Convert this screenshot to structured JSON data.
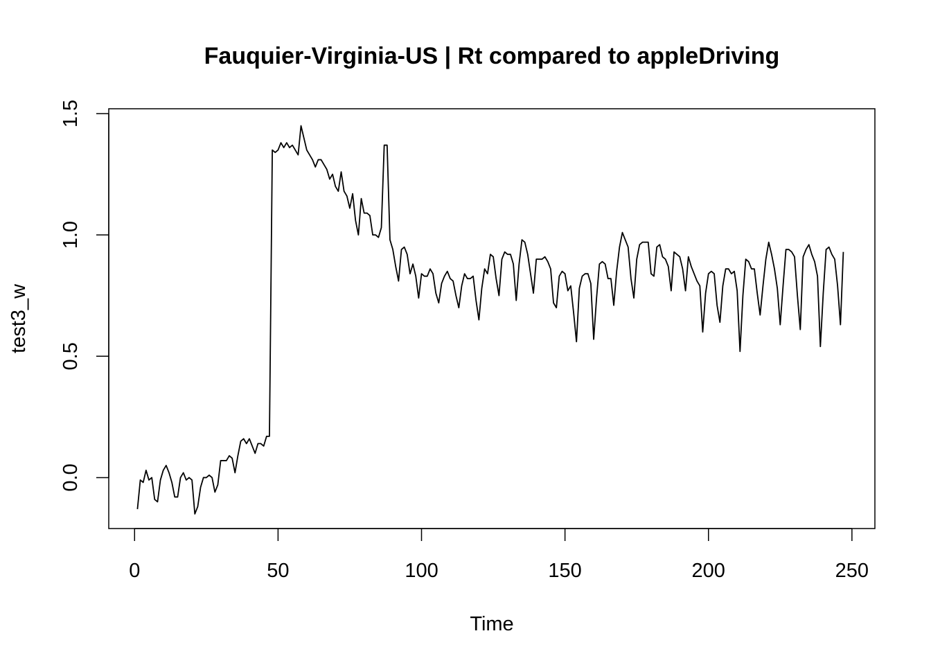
{
  "chart_data": {
    "type": "line",
    "title": "Fauquier-Virginia-US | Rt compared to appleDriving",
    "xlabel": "Time",
    "ylabel": "test3_w",
    "xlim": [
      -9,
      258
    ],
    "ylim": [
      -0.21,
      1.52
    ],
    "x_ticks": [
      0,
      50,
      100,
      150,
      200,
      250
    ],
    "y_ticks": [
      0.0,
      0.5,
      1.0,
      1.5
    ],
    "x_tick_labels": [
      "0",
      "50",
      "100",
      "150",
      "200",
      "250"
    ],
    "y_tick_labels": [
      "0.0",
      "0.5",
      "1.0",
      "1.5"
    ],
    "grid": false,
    "legend": "none",
    "line_color": "#000000",
    "series": [
      {
        "x_start": 1,
        "values": [
          -0.13,
          -0.01,
          -0.02,
          0.03,
          -0.01,
          0.0,
          -0.09,
          -0.1,
          -0.01,
          0.03,
          0.05,
          0.02,
          -0.02,
          -0.08,
          -0.08,
          0.0,
          0.02,
          -0.01,
          0.0,
          -0.01,
          -0.15,
          -0.12,
          -0.04,
          0.0,
          0.0,
          0.01,
          0.0,
          -0.06,
          -0.03,
          0.07,
          0.07,
          0.07,
          0.09,
          0.08,
          0.02,
          0.09,
          0.15,
          0.16,
          0.14,
          0.16,
          0.13,
          0.1,
          0.14,
          0.14,
          0.13,
          0.17,
          0.17,
          1.35,
          1.34,
          1.35,
          1.38,
          1.36,
          1.38,
          1.36,
          1.37,
          1.35,
          1.33,
          1.45,
          1.4,
          1.35,
          1.33,
          1.31,
          1.28,
          1.31,
          1.31,
          1.29,
          1.27,
          1.23,
          1.25,
          1.2,
          1.18,
          1.26,
          1.18,
          1.16,
          1.11,
          1.17,
          1.06,
          1.0,
          1.15,
          1.09,
          1.09,
          1.08,
          1.0,
          1.0,
          0.99,
          1.03,
          1.37,
          1.37,
          0.98,
          0.94,
          0.87,
          0.81,
          0.94,
          0.95,
          0.92,
          0.84,
          0.88,
          0.83,
          0.74,
          0.84,
          0.83,
          0.83,
          0.86,
          0.84,
          0.76,
          0.72,
          0.8,
          0.83,
          0.85,
          0.82,
          0.81,
          0.75,
          0.7,
          0.79,
          0.84,
          0.82,
          0.82,
          0.83,
          0.73,
          0.65,
          0.78,
          0.86,
          0.84,
          0.92,
          0.91,
          0.82,
          0.75,
          0.9,
          0.93,
          0.92,
          0.92,
          0.88,
          0.73,
          0.88,
          0.98,
          0.97,
          0.92,
          0.84,
          0.76,
          0.9,
          0.9,
          0.9,
          0.91,
          0.89,
          0.86,
          0.72,
          0.7,
          0.83,
          0.85,
          0.84,
          0.77,
          0.79,
          0.68,
          0.56,
          0.78,
          0.83,
          0.84,
          0.84,
          0.8,
          0.57,
          0.74,
          0.88,
          0.89,
          0.88,
          0.82,
          0.82,
          0.71,
          0.85,
          0.95,
          1.01,
          0.98,
          0.95,
          0.82,
          0.74,
          0.9,
          0.96,
          0.97,
          0.97,
          0.97,
          0.84,
          0.83,
          0.95,
          0.96,
          0.91,
          0.9,
          0.87,
          0.77,
          0.93,
          0.92,
          0.91,
          0.86,
          0.77,
          0.91,
          0.87,
          0.84,
          0.81,
          0.79,
          0.6,
          0.76,
          0.84,
          0.85,
          0.84,
          0.71,
          0.64,
          0.79,
          0.86,
          0.86,
          0.84,
          0.85,
          0.77,
          0.52,
          0.75,
          0.9,
          0.89,
          0.86,
          0.86,
          0.76,
          0.67,
          0.79,
          0.9,
          0.97,
          0.92,
          0.86,
          0.78,
          0.63,
          0.79,
          0.94,
          0.94,
          0.93,
          0.91,
          0.75,
          0.61,
          0.91,
          0.94,
          0.96,
          0.92,
          0.89,
          0.83,
          0.54,
          0.76,
          0.94,
          0.95,
          0.92,
          0.9,
          0.79,
          0.63,
          0.93
        ]
      }
    ]
  }
}
